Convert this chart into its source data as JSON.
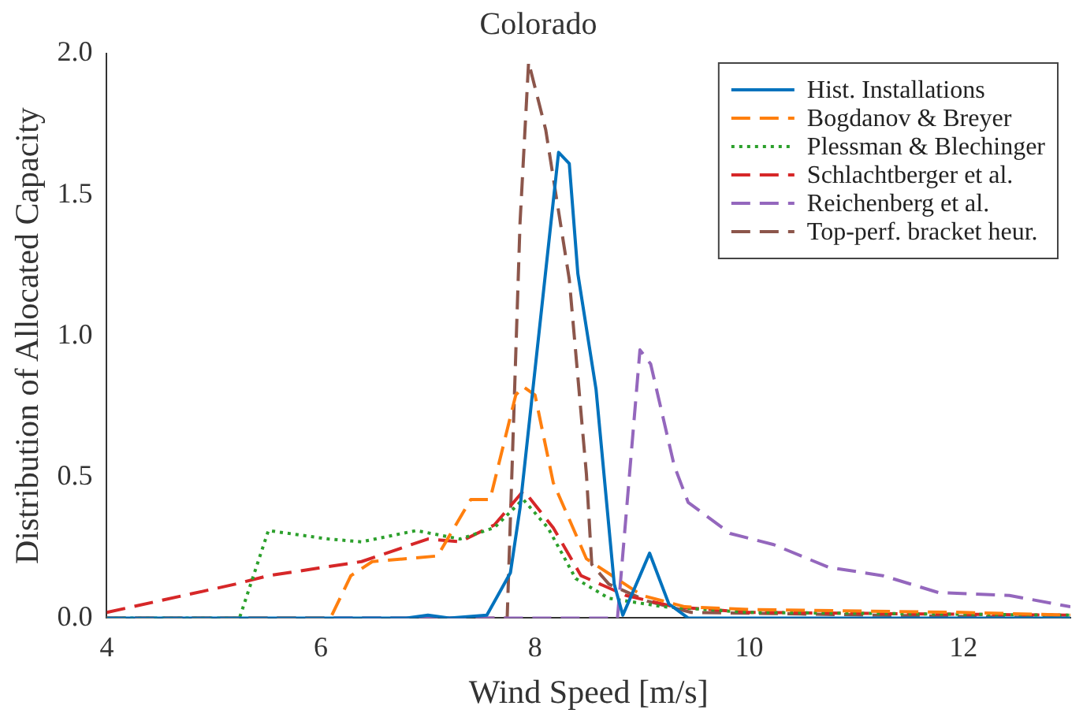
{
  "chart_data": {
    "type": "line",
    "title": "Colorado",
    "xlabel": "Wind Speed [m/s]",
    "ylabel": "Distribution of Allocated Capacity",
    "xlim": [
      4,
      13
    ],
    "xticks": [
      4,
      6,
      8,
      10,
      12
    ],
    "ylim": [
      0,
      2
    ],
    "yticks": [
      {
        "value": 0,
        "label": "0.0"
      },
      {
        "value": 0.5,
        "label": "0.5"
      },
      {
        "value": 1,
        "label": "1.0"
      },
      {
        "value": 1.5,
        "label": "1.5"
      },
      {
        "value": 2,
        "label": "2.0"
      }
    ],
    "grid": false,
    "legend": "top right",
    "marker": "none",
    "series": [
      {
        "name": "Hist. Installations",
        "color": "#0072bd",
        "line_style": "solid",
        "x": [
          4,
          6.8,
          7.0,
          7.2,
          7.55,
          7.77,
          7.86,
          8.22,
          8.32,
          8.4,
          8.57,
          8.74,
          8.82,
          8.98,
          9.07,
          9.25,
          9.43,
          13
        ],
        "values": [
          0,
          0,
          0.01,
          0,
          0.01,
          0.16,
          0.39,
          1.65,
          1.61,
          1.22,
          0.81,
          0.12,
          0.01,
          0.15,
          0.23,
          0.05,
          0,
          0
        ]
      },
      {
        "name": "Bogdanov & Breyer",
        "color": "#ff7f0e",
        "line_style": "dashed",
        "x": [
          4,
          6.09,
          6.28,
          6.48,
          7.09,
          7.4,
          7.58,
          7.82,
          7.89,
          8.0,
          8.17,
          8.48,
          9.0,
          9.4,
          10,
          12,
          13
        ],
        "values": [
          0,
          0,
          0.15,
          0.2,
          0.22,
          0.42,
          0.42,
          0.79,
          0.82,
          0.79,
          0.48,
          0.21,
          0.08,
          0.04,
          0.03,
          0.02,
          0.01
        ]
      },
      {
        "name": "Plessman & Blechinger",
        "color": "#2ca02c",
        "line_style": "dotted",
        "x": [
          4,
          5.24,
          5.51,
          6.07,
          6.38,
          6.89,
          7.3,
          7.62,
          7.86,
          7.89,
          8.12,
          8.38,
          8.69,
          9.2,
          10,
          13
        ],
        "values": [
          0,
          0,
          0.31,
          0.28,
          0.27,
          0.31,
          0.28,
          0.32,
          0.41,
          0.42,
          0.32,
          0.14,
          0.07,
          0.04,
          0.02,
          0.01
        ]
      },
      {
        "name": "Schlachtberger et al.",
        "color": "#d62728",
        "line_style": "dashed",
        "x": [
          4,
          5.2,
          5.51,
          6.38,
          7.0,
          7.3,
          7.62,
          7.89,
          7.94,
          8.17,
          8.43,
          8.85,
          9.3,
          10,
          13
        ],
        "values": [
          0.02,
          0.12,
          0.15,
          0.2,
          0.28,
          0.27,
          0.33,
          0.45,
          0.43,
          0.32,
          0.15,
          0.08,
          0.04,
          0.02,
          0.01
        ]
      },
      {
        "name": "Reichenberg et al.",
        "color": "#9467bd",
        "line_style": "dashed",
        "x": [
          4,
          8.77,
          8.98,
          9.08,
          9.3,
          9.43,
          9.82,
          10.23,
          10.74,
          11.25,
          11.77,
          12.43,
          13
        ],
        "values": [
          0,
          0,
          0.95,
          0.9,
          0.54,
          0.41,
          0.3,
          0.26,
          0.18,
          0.15,
          0.09,
          0.08,
          0.04
        ]
      },
      {
        "name": "Top-perf. bracket heur.",
        "color": "#8c564b",
        "line_style": "dashed",
        "x": [
          4,
          7.74,
          7.86,
          7.94,
          8.1,
          8.32,
          8.48,
          8.53,
          8.69,
          9.05,
          9.46,
          13
        ],
        "values": [
          0,
          0,
          1.4,
          1.97,
          1.73,
          1.2,
          0.51,
          0.19,
          0.12,
          0.06,
          0.02,
          0
        ]
      }
    ]
  }
}
